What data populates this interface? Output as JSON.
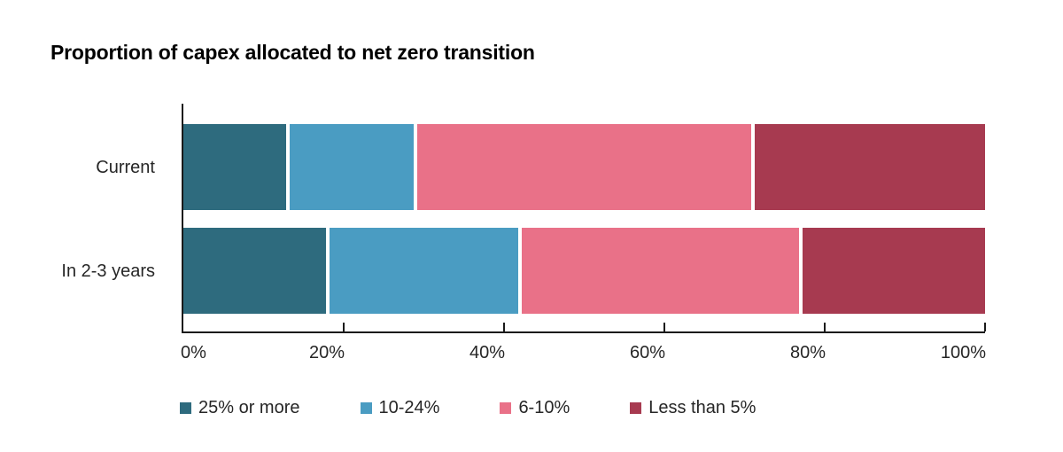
{
  "chart_data": {
    "type": "bar",
    "stacked": true,
    "orientation": "horizontal",
    "title": "Proportion of capex allocated to net zero transition",
    "categories": [
      "Current",
      "In 2-3 years"
    ],
    "series": [
      {
        "name": "25% or more",
        "color": "#2E6B7E",
        "values": [
          13,
          18
        ]
      },
      {
        "name": "10-24%",
        "color": "#4A9CC2",
        "values": [
          16,
          24
        ]
      },
      {
        "name": "6-10%",
        "color": "#E97188",
        "values": [
          42,
          35
        ]
      },
      {
        "name": "Less than 5%",
        "color": "#A73A50",
        "values": [
          29,
          23
        ]
      }
    ],
    "x_axis": {
      "min": 0,
      "max": 100,
      "tick_values": [
        0,
        20,
        40,
        60,
        80,
        100
      ],
      "tick_labels": [
        "0%",
        "20%",
        "40%",
        "60%",
        "80%",
        "100%"
      ]
    },
    "legend_position": "bottom",
    "grid": false
  },
  "colors": {
    "background": "#ffffff",
    "axis": "#1a1a1a",
    "text": "#262626",
    "title": "#000000"
  }
}
